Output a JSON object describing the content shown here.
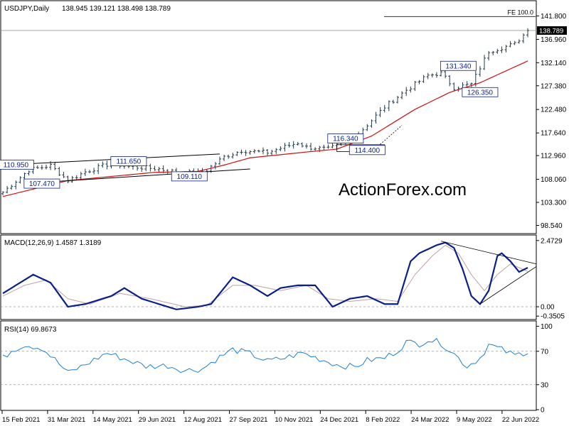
{
  "colors": {
    "price": "#1f3a4a",
    "sma": "#d01010",
    "macd": "#0b1f8a",
    "signal": "#bfa0a0",
    "rsi": "#1e7fd0",
    "boxText": "#0b1f8a",
    "grid": "#cccccc",
    "watermark": "#c8c8c8"
  },
  "watermark": "ActionForex.com",
  "chart_data": [
    {
      "type": "candlestick",
      "title": "USDJPY,Daily",
      "ohlc_text": "138.945 139.121 138.498 138.789",
      "ylim": [
        97.0,
        144.5
      ],
      "yticks": [
        "141.800",
        "136.960",
        "132.140",
        "127.380",
        "122.480",
        "117.640",
        "112.960",
        "108.060",
        "103.300",
        "98.540"
      ],
      "current_price_label": "138.789",
      "current_price": 138.789,
      "fe_label": "FE 100.0",
      "fe_level": 142.4,
      "price_anchors": [
        [
          0,
          105.4
        ],
        [
          6,
          110.0
        ],
        [
          11,
          110.9
        ],
        [
          15,
          107.8
        ],
        [
          19,
          109.6
        ],
        [
          25,
          111.4
        ],
        [
          29,
          110.7
        ],
        [
          36,
          110.2
        ],
        [
          41,
          109.4
        ],
        [
          45,
          109.4
        ],
        [
          47,
          110.0
        ],
        [
          51,
          112.7
        ],
        [
          55,
          114.0
        ],
        [
          61,
          113.6
        ],
        [
          64,
          114.5
        ],
        [
          68,
          115.6
        ],
        [
          70,
          114.7
        ],
        [
          75,
          114.3
        ],
        [
          77,
          115.0
        ],
        [
          82,
          117.5
        ],
        [
          88,
          123.0
        ],
        [
          93,
          126.5
        ],
        [
          98,
          129.5
        ],
        [
          101,
          130.0
        ],
        [
          104,
          127.0
        ],
        [
          108,
          127.7
        ],
        [
          112,
          134.5
        ],
        [
          116,
          135.5
        ],
        [
          118,
          136.0
        ],
        [
          121,
          138.8
        ]
      ],
      "sma_anchors": [
        [
          0,
          104.5
        ],
        [
          15,
          107.8
        ],
        [
          35,
          109.5
        ],
        [
          45,
          109.7
        ],
        [
          51,
          111.0
        ],
        [
          57,
          112.5
        ],
        [
          70,
          113.7
        ],
        [
          77,
          114.3
        ],
        [
          85,
          117.0
        ],
        [
          95,
          122.5
        ],
        [
          103,
          126.0
        ],
        [
          110,
          128.0
        ],
        [
          121,
          132.5
        ]
      ],
      "labels": [
        {
          "text": "110.950",
          "y": 110.95
        },
        {
          "text": "107.470",
          "y": 107.47
        },
        {
          "text": "111.650",
          "y": 111.65
        },
        {
          "text": "109.110",
          "y": 109.11
        },
        {
          "text": "116.340",
          "y": 116.34
        },
        {
          "text": "114.400",
          "y": 114.4
        },
        {
          "text": "131.340",
          "y": 131.34
        },
        {
          "text": "126.350",
          "y": 126.35
        }
      ]
    },
    {
      "type": "line",
      "title": "MACD(12,26,9) 1.4587 1.3189",
      "ylim": [
        -0.45,
        2.6
      ],
      "yticks": [
        "2.4729",
        "0.00",
        "-0.3505"
      ],
      "macd_anchors": [
        [
          0,
          0.5
        ],
        [
          3,
          0.8
        ],
        [
          7,
          1.2
        ],
        [
          11,
          0.9
        ],
        [
          15,
          0.0
        ],
        [
          19,
          0.1
        ],
        [
          25,
          0.4
        ],
        [
          28,
          0.7
        ],
        [
          32,
          0.3
        ],
        [
          36,
          0.1
        ],
        [
          40,
          -0.1
        ],
        [
          45,
          0.0
        ],
        [
          48,
          0.1
        ],
        [
          53,
          1.1
        ],
        [
          57,
          0.8
        ],
        [
          61,
          0.4
        ],
        [
          64,
          0.7
        ],
        [
          68,
          0.8
        ],
        [
          72,
          0.8
        ],
        [
          76,
          0.0
        ],
        [
          80,
          0.3
        ],
        [
          84,
          0.4
        ],
        [
          88,
          0.1
        ],
        [
          91,
          0.1
        ],
        [
          94,
          1.7
        ],
        [
          96,
          2.0
        ],
        [
          100,
          2.3
        ],
        [
          102,
          2.4
        ],
        [
          104,
          2.2
        ],
        [
          106,
          1.4
        ],
        [
          108,
          0.4
        ],
        [
          110,
          0.1
        ],
        [
          112,
          0.6
        ],
        [
          114,
          1.9
        ],
        [
          115,
          2.0
        ],
        [
          117,
          1.7
        ],
        [
          119,
          1.3
        ],
        [
          121,
          1.46
        ]
      ],
      "signal_anchors": [
        [
          0,
          0.4
        ],
        [
          5,
          0.8
        ],
        [
          10,
          1.0
        ],
        [
          15,
          0.3
        ],
        [
          20,
          0.1
        ],
        [
          27,
          0.5
        ],
        [
          34,
          0.3
        ],
        [
          42,
          0.0
        ],
        [
          47,
          0.05
        ],
        [
          53,
          0.8
        ],
        [
          58,
          0.8
        ],
        [
          64,
          0.6
        ],
        [
          70,
          0.8
        ],
        [
          75,
          0.3
        ],
        [
          80,
          0.2
        ],
        [
          86,
          0.3
        ],
        [
          91,
          0.2
        ],
        [
          95,
          1.2
        ],
        [
          99,
          1.9
        ],
        [
          102,
          2.3
        ],
        [
          105,
          2.0
        ],
        [
          108,
          1.2
        ],
        [
          111,
          0.6
        ],
        [
          114,
          1.2
        ],
        [
          117,
          1.6
        ],
        [
          121,
          1.32
        ]
      ],
      "trendlines": [
        [
          [
            101,
            2.45
          ],
          [
            121,
            1.6
          ]
        ],
        [
          [
            110,
            0.1
          ],
          [
            121,
            1.5
          ]
        ]
      ]
    },
    {
      "type": "line",
      "title": "RSI(14) 69.8673",
      "ylim": [
        0,
        103
      ],
      "yticks": [
        "100",
        "70",
        "30",
        "0"
      ],
      "levels": [
        70,
        30
      ],
      "rsi_anchors": [
        [
          0,
          62
        ],
        [
          2,
          71
        ],
        [
          5,
          78
        ],
        [
          9,
          74
        ],
        [
          12,
          60
        ],
        [
          15,
          44
        ],
        [
          19,
          54
        ],
        [
          24,
          68
        ],
        [
          28,
          61
        ],
        [
          33,
          52
        ],
        [
          38,
          53
        ],
        [
          42,
          47
        ],
        [
          46,
          49
        ],
        [
          49,
          60
        ],
        [
          53,
          72
        ],
        [
          57,
          67
        ],
        [
          61,
          58
        ],
        [
          65,
          62
        ],
        [
          69,
          68
        ],
        [
          73,
          61
        ],
        [
          77,
          54
        ],
        [
          81,
          51
        ],
        [
          84,
          59
        ],
        [
          88,
          62
        ],
        [
          91,
          71
        ],
        [
          93,
          81
        ],
        [
          96,
          79
        ],
        [
          98,
          84
        ],
        [
          101,
          80
        ],
        [
          104,
          67
        ],
        [
          107,
          52
        ],
        [
          110,
          62
        ],
        [
          112,
          78
        ],
        [
          115,
          72
        ],
        [
          118,
          65
        ],
        [
          121,
          70
        ]
      ]
    }
  ],
  "xaxis": {
    "labels": [
      "15 Feb 2021",
      "31 Mar 2021",
      "14 May 2021",
      "29 Jun 2021",
      "12 Aug 2021",
      "27 Sep 2021",
      "10 Nov 2021",
      "24 Dec 2021",
      "8 Feb 2022",
      "24 Mar 2022",
      "9 May 2022",
      "22 Jun 2022"
    ],
    "n": 122
  }
}
